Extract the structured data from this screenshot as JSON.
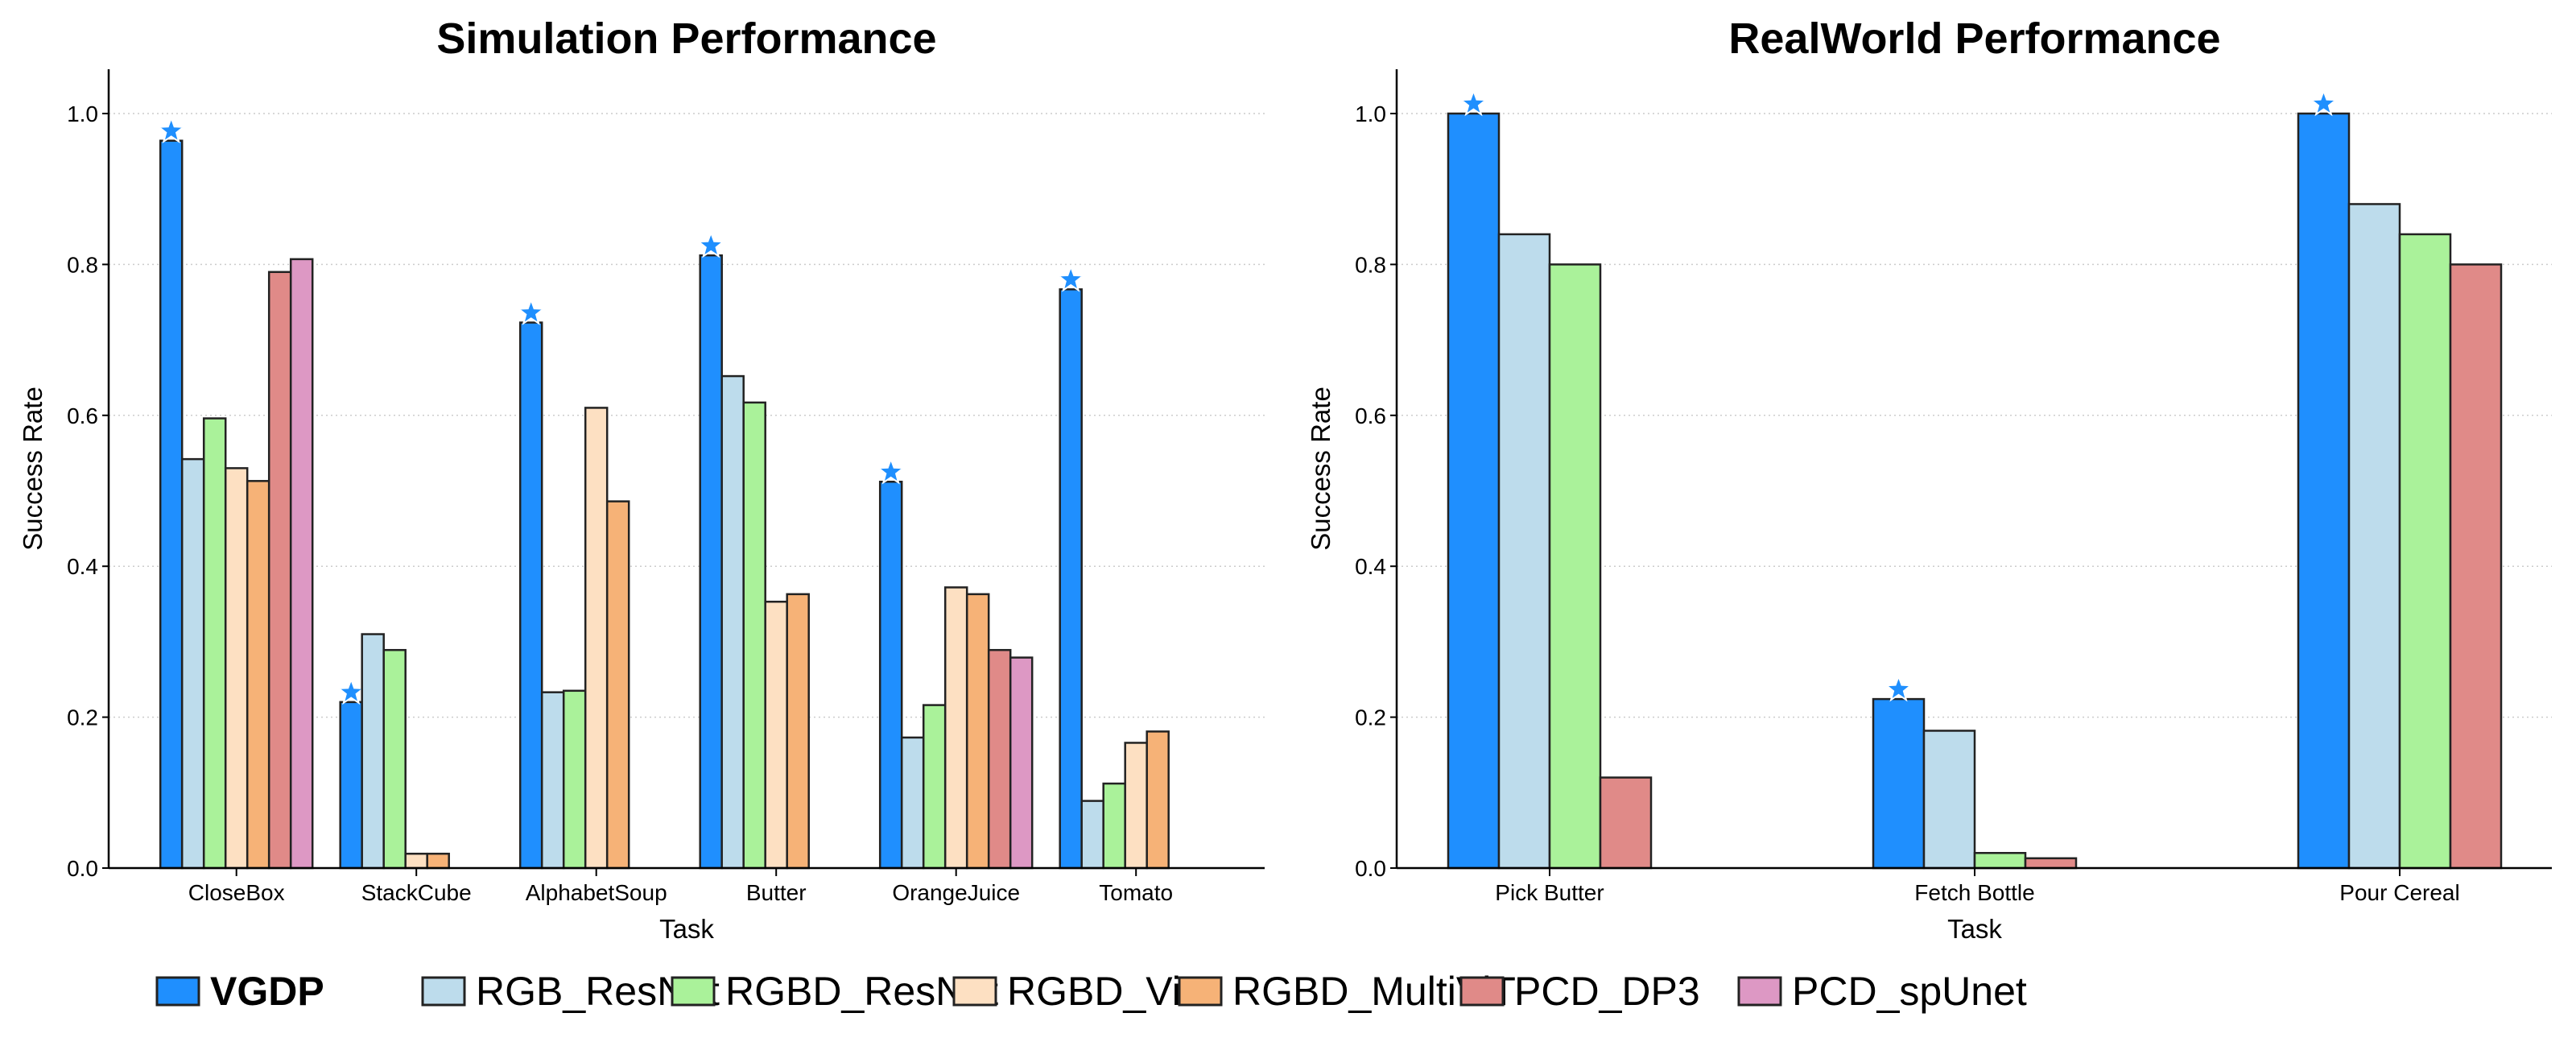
{
  "legend": {
    "items": [
      "VGDP",
      "RGB_ResNet",
      "RGBD_ResNet",
      "RGBD_ViT",
      "RGBD_MultiViT",
      "PCD_DP3",
      "PCD_spUnet"
    ],
    "bold_item": "VGDP"
  },
  "colors": {
    "VGDP": "#1f8ffe",
    "RGB_ResNet": "#bddcec",
    "RGBD_ResNet": "#aaf29a",
    "RGBD_ViT": "#fde0c2",
    "RGBD_MultiViT": "#f6b277",
    "PCD_DP3": "#e08a88",
    "PCD_spUnet": "#dd98c4",
    "edge": "#222222",
    "grid": "#cccccc"
  },
  "chart_data": [
    {
      "type": "bar",
      "title": "Simulation Performance",
      "xlabel": "Task",
      "ylabel": "Success Rate",
      "ylim": [
        0,
        1.06
      ],
      "yticks": [
        "0.0",
        "0.2",
        "0.4",
        "0.6",
        "0.8",
        "1.0"
      ],
      "grid": "horizontal dotted",
      "highlight_series": "VGDP",
      "highlight_marker": "star",
      "categories": [
        "CloseBox",
        "StackCube",
        "AlphabetSoup",
        "Butter",
        "OrangeJuice",
        "Tomato"
      ],
      "series": [
        {
          "name": "VGDP",
          "values": [
            0.964,
            0.22,
            0.723,
            0.812,
            0.512,
            0.767
          ]
        },
        {
          "name": "RGB_ResNet",
          "values": [
            0.542,
            0.31,
            0.233,
            0.652,
            0.173,
            0.089
          ]
        },
        {
          "name": "RGBD_ResNet",
          "values": [
            0.596,
            0.289,
            0.235,
            0.617,
            0.216,
            0.112
          ]
        },
        {
          "name": "RGBD_ViT",
          "values": [
            0.53,
            0.019,
            0.61,
            0.353,
            0.372,
            0.166
          ]
        },
        {
          "name": "RGBD_MultiViT",
          "values": [
            0.513,
            0.019,
            0.486,
            0.363,
            0.363,
            0.181
          ]
        },
        {
          "name": "PCD_DP3",
          "values": [
            0.79,
            null,
            null,
            null,
            0.289,
            null
          ]
        },
        {
          "name": "PCD_spUnet",
          "values": [
            0.807,
            null,
            null,
            null,
            0.279,
            null
          ]
        }
      ]
    },
    {
      "type": "bar",
      "title": "RealWorld Performance",
      "xlabel": "Task",
      "ylabel": "Success Rate",
      "ylim": [
        0,
        1.06
      ],
      "yticks": [
        "0.0",
        "0.2",
        "0.4",
        "0.6",
        "0.8",
        "1.0"
      ],
      "grid": "horizontal dotted",
      "highlight_series": "VGDP",
      "highlight_marker": "star",
      "categories": [
        "Pick Butter",
        "Fetch Bottle",
        "Pour Cereal"
      ],
      "series": [
        {
          "name": "VGDP",
          "values": [
            1.0,
            0.224,
            1.0
          ]
        },
        {
          "name": "RGB_ResNet",
          "values": [
            0.84,
            0.182,
            0.88
          ]
        },
        {
          "name": "RGBD_ResNet",
          "values": [
            0.8,
            0.02,
            0.84
          ]
        },
        {
          "name": "PCD_DP3",
          "values": [
            0.12,
            0.013,
            0.8
          ]
        }
      ]
    }
  ]
}
